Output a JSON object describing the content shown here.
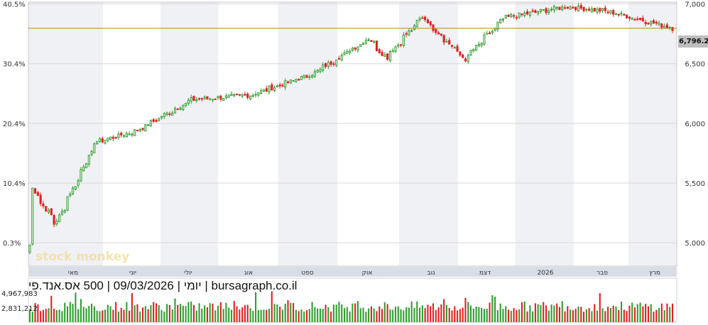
{
  "caption": "יומי | 09/03/2026 | 500 אס.אנד.פי | bursagraph.co.il",
  "watermark": "stock monkey",
  "last_price_label": "6,796.25",
  "volume_labels": [
    "4,967,983",
    "2,831,212"
  ],
  "colors": {
    "up": "#2e9e2e",
    "down": "#e02020",
    "reference_line": "#b8860b",
    "grid": "#d8d8dc",
    "band": "#f0f1f4"
  },
  "chart_data": {
    "type": "candlestick",
    "title": "",
    "right_axis": {
      "ticks": [
        "7,000",
        "6,500",
        "6,000",
        "5,500",
        "5,000"
      ],
      "values": [
        7000,
        6500,
        6000,
        5500,
        5000
      ],
      "ylim": [
        4805,
        7015
      ]
    },
    "left_axis": {
      "ticks": [
        "40.5%",
        "30.4%",
        "20.4%",
        "10.4%",
        "0.3%"
      ]
    },
    "x_month_labels": [
      "מאי",
      "יוני",
      "יולי",
      "אוג",
      "ספט",
      "אוק",
      "נוב",
      "דצמ",
      "2026",
      "פבר",
      "מרץ"
    ],
    "reference_price": 6796.25,
    "last_price": 6796.25,
    "grid": true,
    "key_points": [
      {
        "date": "2025-04-08",
        "price": 4982
      },
      {
        "date": "2025-04-09",
        "price": 5456
      },
      {
        "date": "2025-04-21",
        "price": 5158
      },
      {
        "date": "2025-05-12",
        "price": 5844
      },
      {
        "date": "2025-06-02",
        "price": 5936
      },
      {
        "date": "2025-07-01",
        "price": 6198
      },
      {
        "date": "2025-08-01",
        "price": 6238
      },
      {
        "date": "2025-09-02",
        "price": 6415
      },
      {
        "date": "2025-10-01",
        "price": 6711
      },
      {
        "date": "2025-10-10",
        "price": 6552
      },
      {
        "date": "2025-10-29",
        "price": 6890
      },
      {
        "date": "2025-11-20",
        "price": 6538
      },
      {
        "date": "2025-12-11",
        "price": 6886
      },
      {
        "date": "2026-01-12",
        "price": 6977
      },
      {
        "date": "2026-02-02",
        "price": 6939
      },
      {
        "date": "2026-03-09",
        "price": 6796
      }
    ]
  }
}
